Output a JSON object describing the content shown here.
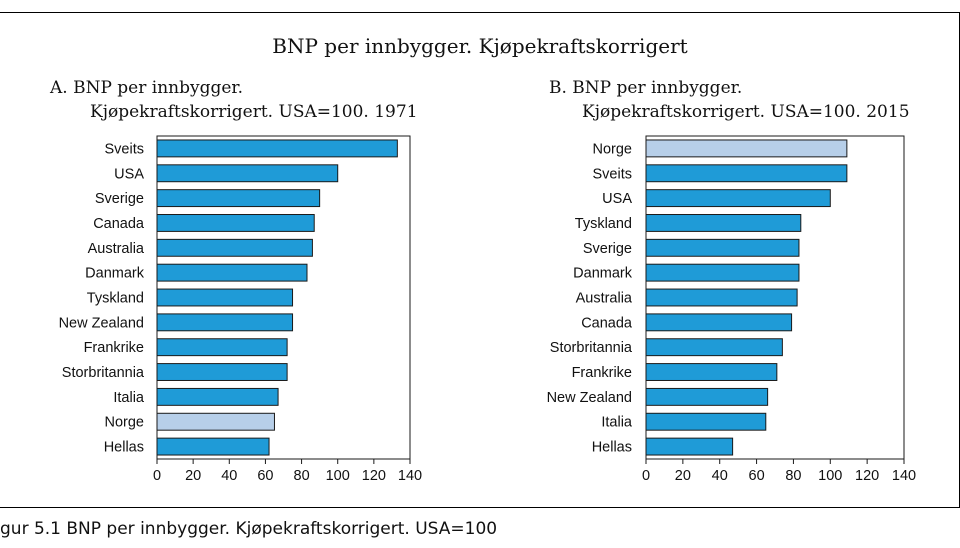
{
  "title": "BNP per innbygger. Kjøpekraftskorrigert",
  "caption": "gur 5.1  BNP per innbygger. Kjøpekraftskorrigert. USA=100",
  "colors": {
    "bar": "#1f9bd7",
    "highlight": "#b7cfe9",
    "stroke": "#1a1a1a"
  },
  "chart_data": [
    {
      "type": "bar",
      "orientation": "horizontal",
      "title_line1": "A.  BNP per innbygger.",
      "title_line2": "Kjøpekraftskorrigert. USA=100. 1971",
      "categories": [
        "Sveits",
        "USA",
        "Sverige",
        "Canada",
        "Australia",
        "Danmark",
        "Tyskland",
        "New Zealand",
        "Frankrike",
        "Storbritannia",
        "Italia",
        "Norge",
        "Hellas"
      ],
      "values": [
        133,
        100,
        90,
        87,
        86,
        83,
        75,
        75,
        72,
        72,
        67,
        65,
        62
      ],
      "highlight": "Norge",
      "xlim": [
        0,
        140
      ],
      "xticks": [
        0,
        20,
        40,
        60,
        80,
        100,
        120,
        140
      ]
    },
    {
      "type": "bar",
      "orientation": "horizontal",
      "title_line1": "B.  BNP per innbygger.",
      "title_line2": "Kjøpekraftskorrigert. USA=100. 2015",
      "categories": [
        "Norge",
        "Sveits",
        "USA",
        "Tyskland",
        "Sverige",
        "Danmark",
        "Australia",
        "Canada",
        "Storbritannia",
        "Frankrike",
        "New Zealand",
        "Italia",
        "Hellas"
      ],
      "values": [
        109,
        109,
        100,
        84,
        83,
        83,
        82,
        79,
        74,
        71,
        66,
        65,
        47
      ],
      "highlight": "Norge",
      "xlim": [
        0,
        140
      ],
      "xticks": [
        0,
        20,
        40,
        60,
        80,
        100,
        120,
        140
      ]
    }
  ]
}
